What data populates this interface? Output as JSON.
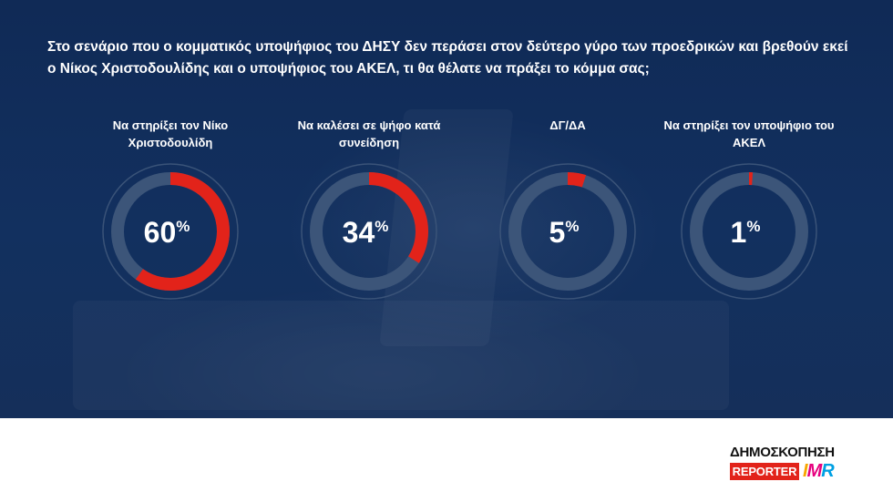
{
  "question": "Στο σενάριο που ο κομματικός υποψήφιος του ΔΗΣΥ δεν περάσει στον δεύτερο γύρο των προεδρικών και βρεθούν εκεί ο Νίκος Χριστοδουλίδης και ο υποψήφιος του ΑΚΕΛ, τι θα θέλατε να πράξει το κόμμα σας;",
  "colors": {
    "background": "#12305f",
    "ring_track": "#3c5579",
    "ring_value": "#e2231a",
    "outer_ring": "#3a5378"
  },
  "chart_data": {
    "type": "pie",
    "variant": "donut-set",
    "unit": "%",
    "categories": [
      "Να στηρίξει τον Νίκο Χριστοδουλίδη",
      "Να καλέσει σε ψήφο κατά συνείδηση",
      "ΔΓ/ΔΑ",
      "Να στηρίξει τον υποψήφιο του ΑΚΕΛ"
    ],
    "values": [
      60,
      34,
      5,
      1
    ],
    "value_labels": [
      "60",
      "34",
      "5",
      "1"
    ]
  },
  "logo": {
    "word": "ΔΗΜΟΣΚΟΠΗΣΗ",
    "reporter": "REPORTER",
    "imr_i": "I",
    "imr_m": "M",
    "imr_r": "R"
  }
}
